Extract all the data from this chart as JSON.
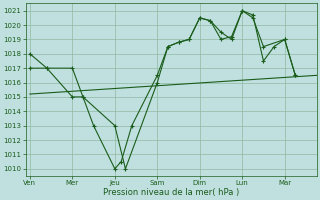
{
  "background_color": "#c0e0e0",
  "grid_color": "#90b8a0",
  "line_color": "#1a5c1a",
  "xlabel": "Pression niveau de la mer( hPa )",
  "ylim": [
    1009.5,
    1021.5
  ],
  "yticks": [
    1010,
    1011,
    1012,
    1013,
    1014,
    1015,
    1016,
    1017,
    1018,
    1019,
    1020,
    1021
  ],
  "xtick_labels": [
    "Ven",
    "Mer",
    "Jeu",
    "Sam",
    "Dim",
    "Lun",
    "Mar"
  ],
  "xtick_positions": [
    0,
    2,
    4,
    6,
    8,
    10,
    12
  ],
  "xlim": [
    -0.2,
    13.5
  ],
  "line1_x": [
    0,
    0.8,
    2,
    2.5,
    4,
    4.5,
    6,
    6.5,
    7,
    7.5,
    8,
    8.5,
    9,
    9.5,
    10,
    10.5,
    11,
    12,
    12.5
  ],
  "line1_y": [
    1018,
    1017,
    1017,
    1015,
    1013,
    1010,
    1016,
    1018.5,
    1018.8,
    1019,
    1020.5,
    1020.3,
    1019.5,
    1019,
    1021,
    1020.5,
    1018.5,
    1019,
    1016.5
  ],
  "line2_x": [
    0,
    0.8,
    2,
    2.5,
    3,
    4,
    4.3,
    4.8,
    6,
    6.5,
    7,
    7.5,
    8,
    8.5,
    9,
    9.5,
    10,
    10.5,
    11,
    11.5,
    12,
    12.5
  ],
  "line2_y": [
    1017,
    1017,
    1015,
    1015,
    1013,
    1010,
    1010.5,
    1013,
    1016.5,
    1018.5,
    1018.8,
    1019,
    1020.5,
    1020.3,
    1019,
    1019.2,
    1021.0,
    1020.7,
    1017.5,
    1018.5,
    1019,
    1016.5
  ],
  "trend_x": [
    0,
    13.5
  ],
  "trend_y": [
    1015.2,
    1016.5
  ],
  "figsize": [
    3.2,
    2.0
  ],
  "dpi": 100
}
